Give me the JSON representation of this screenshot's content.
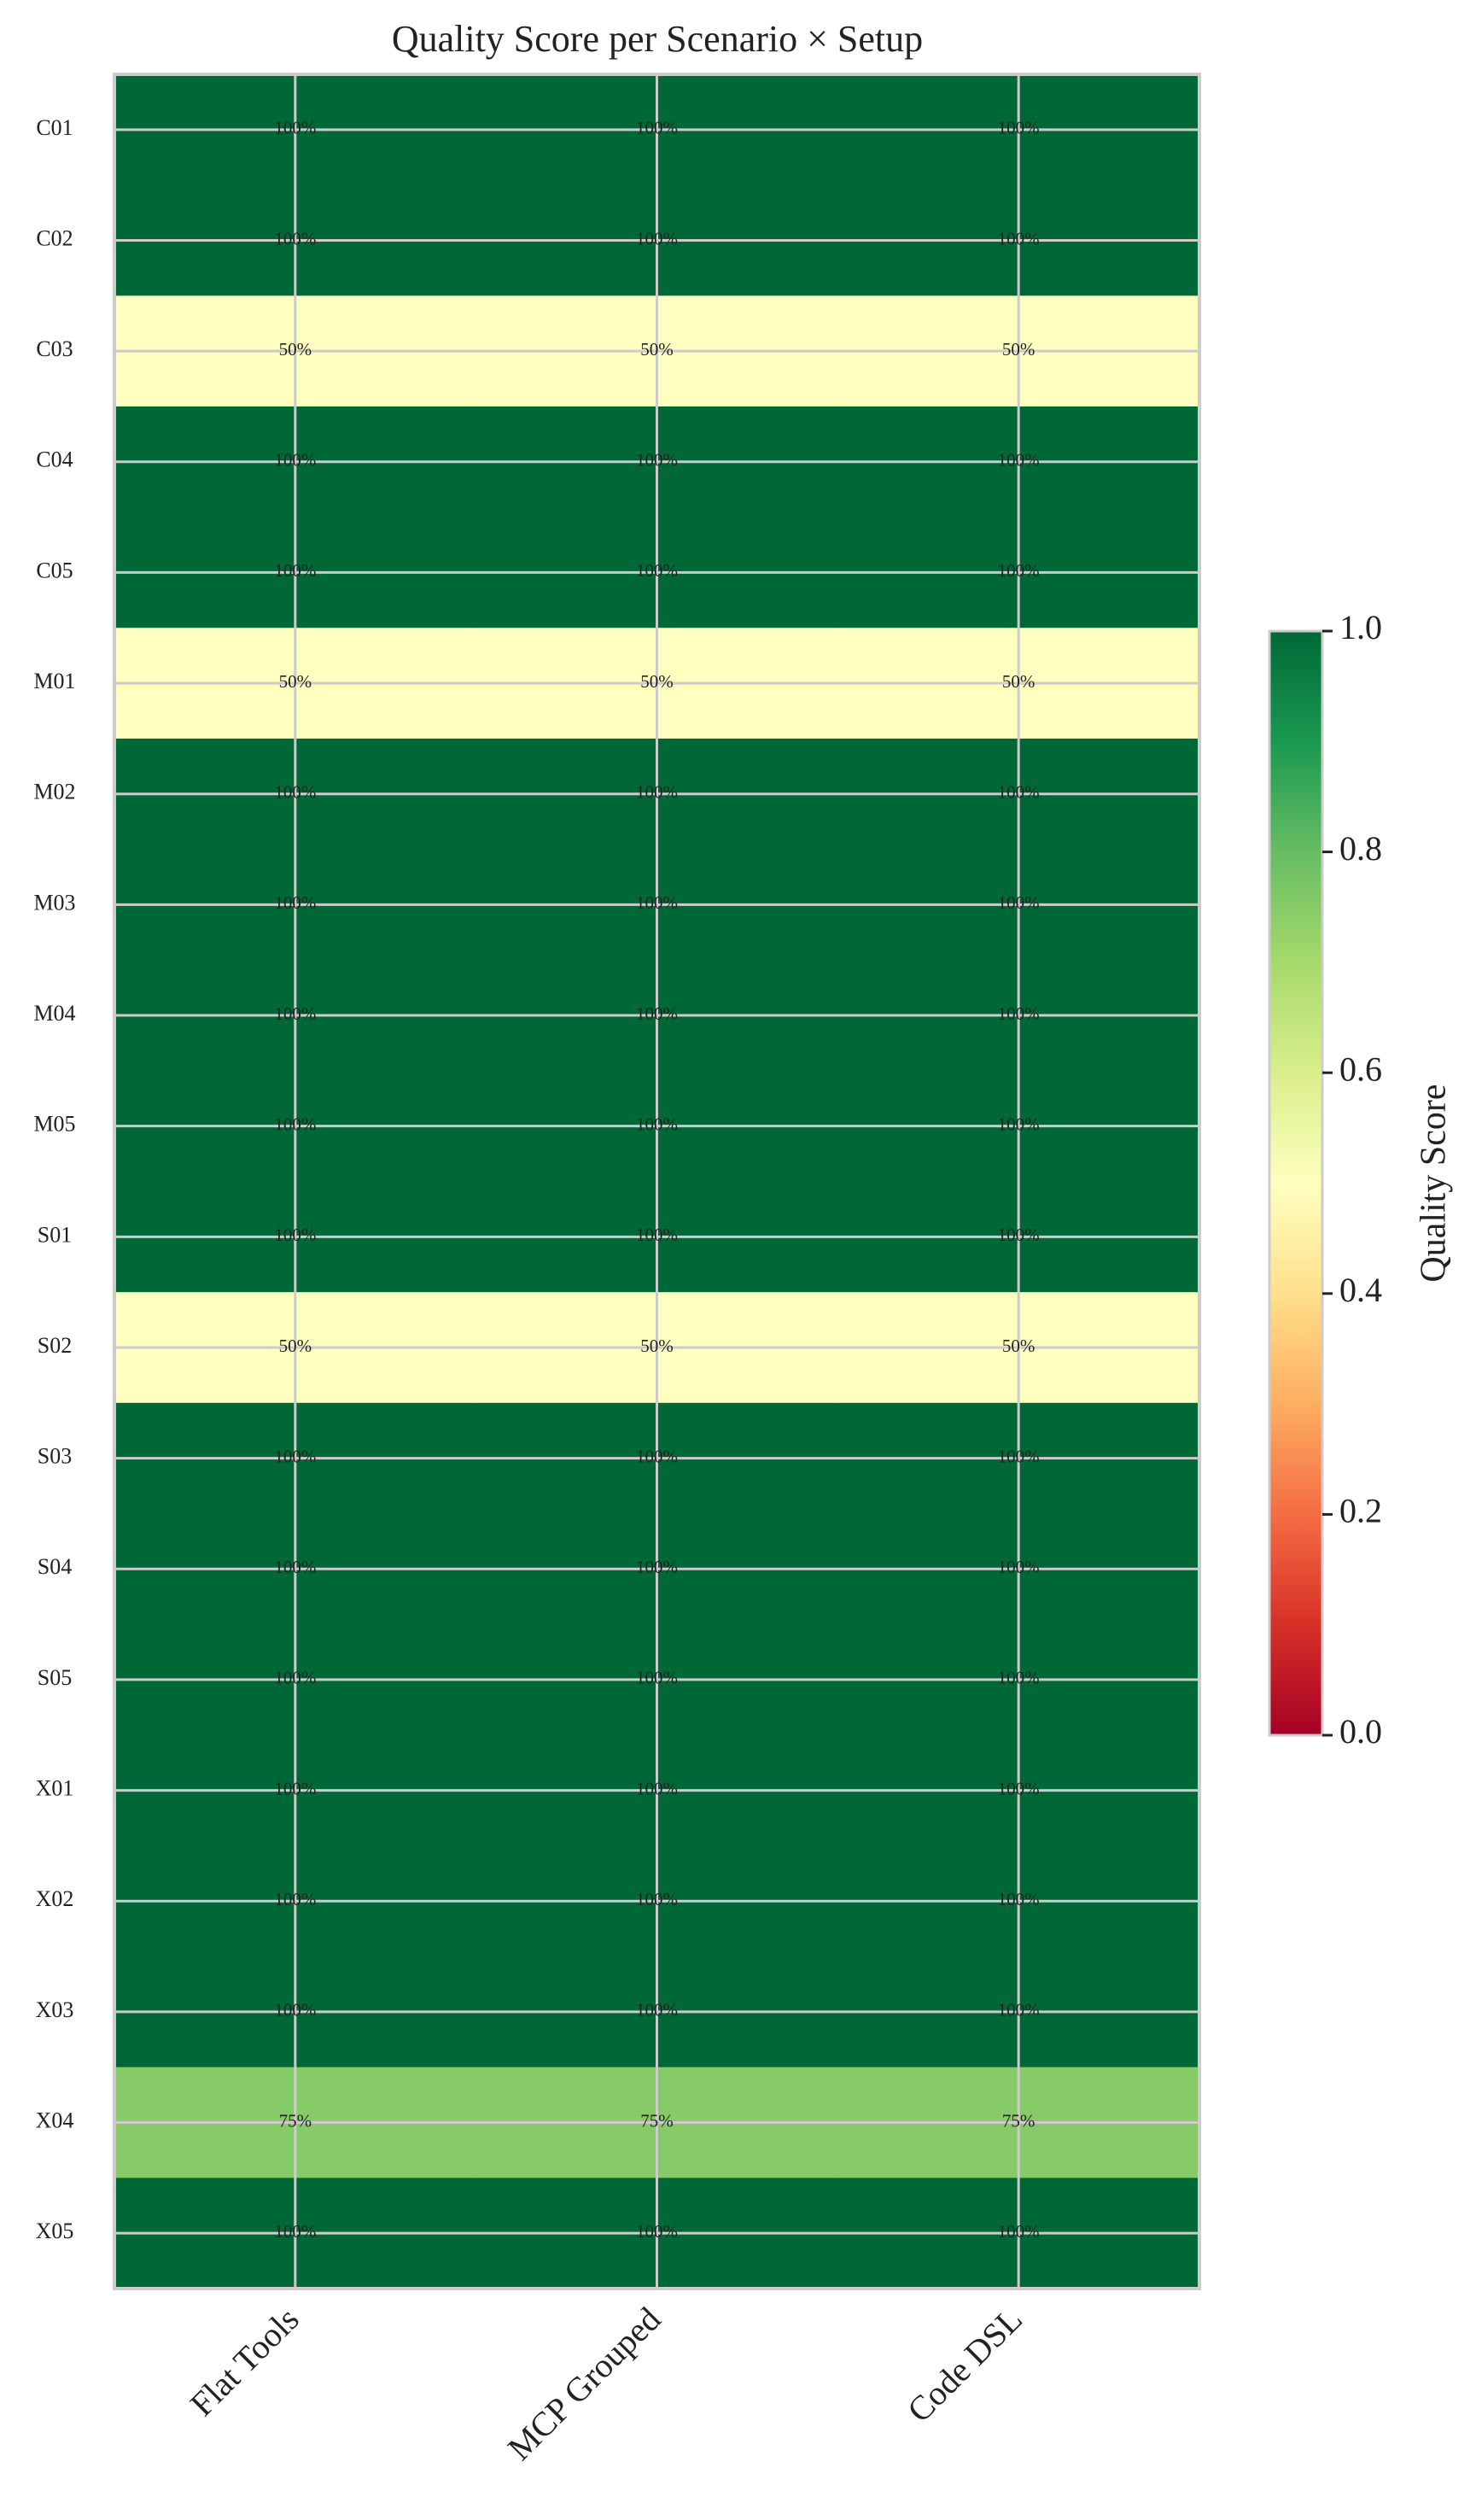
{
  "chart_data": {
    "type": "heatmap",
    "title": "Quality Score per Scenario × Setup",
    "categories": [
      "C01",
      "C02",
      "C03",
      "C04",
      "C05",
      "M01",
      "M02",
      "M03",
      "M04",
      "M05",
      "S01",
      "S02",
      "S03",
      "S04",
      "S05",
      "X01",
      "X02",
      "X03",
      "X04",
      "X05"
    ],
    "series": [
      {
        "name": "Flat Tools",
        "values": [
          1,
          1,
          0.5,
          1,
          1,
          0.5,
          1,
          1,
          1,
          1,
          1,
          0.5,
          1,
          1,
          1,
          1,
          1,
          1,
          0.75,
          1
        ],
        "value_labels": [
          "100%",
          "100%",
          "50%",
          "100%",
          "100%",
          "50%",
          "100%",
          "100%",
          "100%",
          "100%",
          "100%",
          "50%",
          "100%",
          "100%",
          "100%",
          "100%",
          "100%",
          "100%",
          "75%",
          "100%"
        ]
      },
      {
        "name": "MCP Grouped",
        "values": [
          1,
          1,
          0.5,
          1,
          1,
          0.5,
          1,
          1,
          1,
          1,
          1,
          0.5,
          1,
          1,
          1,
          1,
          1,
          1,
          0.75,
          1
        ],
        "value_labels": [
          "100%",
          "100%",
          "50%",
          "100%",
          "100%",
          "50%",
          "100%",
          "100%",
          "100%",
          "100%",
          "100%",
          "50%",
          "100%",
          "100%",
          "100%",
          "100%",
          "100%",
          "100%",
          "75%",
          "100%"
        ]
      },
      {
        "name": "Code DSL",
        "values": [
          1,
          1,
          0.5,
          1,
          1,
          0.5,
          1,
          1,
          1,
          1,
          1,
          0.5,
          1,
          1,
          1,
          1,
          1,
          1,
          0.75,
          1
        ],
        "value_labels": [
          "100%",
          "100%",
          "50%",
          "100%",
          "100%",
          "50%",
          "100%",
          "100%",
          "100%",
          "100%",
          "100%",
          "50%",
          "100%",
          "100%",
          "100%",
          "100%",
          "100%",
          "100%",
          "75%",
          "100%"
        ]
      }
    ],
    "colormap": [
      "#a50026",
      "#d73027",
      "#f46d43",
      "#fdae61",
      "#fee08b",
      "#ffffbf",
      "#d9ef8b",
      "#a6d96a",
      "#66bd63",
      "#1a9850",
      "#006837"
    ],
    "colorbar_label": "Quality Score",
    "clim": [
      0,
      1
    ],
    "cticks": [
      {
        "value": 0,
        "label": "0.0"
      },
      {
        "value": 0.2,
        "label": "0.2"
      },
      {
        "value": 0.4,
        "label": "0.4"
      },
      {
        "value": 0.6,
        "label": "0.6"
      },
      {
        "value": 0.8,
        "label": "0.8"
      },
      {
        "value": 1,
        "label": "1.0"
      }
    ],
    "grid": true
  }
}
